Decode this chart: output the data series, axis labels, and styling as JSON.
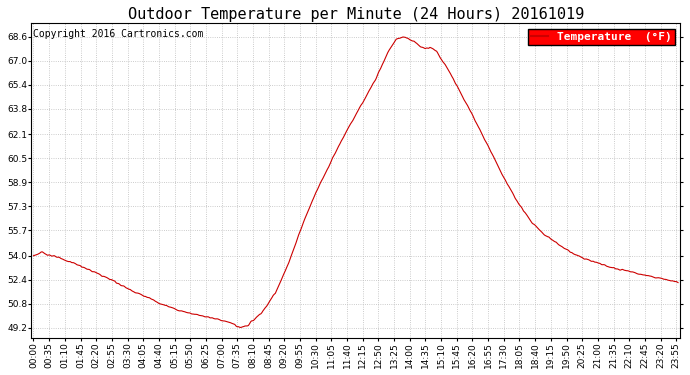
{
  "title": "Outdoor Temperature per Minute (24 Hours) 20161019",
  "copyright": "Copyright 2016 Cartronics.com",
  "legend_label": "Temperature  (°F)",
  "yticks": [
    49.2,
    50.8,
    52.4,
    54.0,
    55.7,
    57.3,
    58.9,
    60.5,
    62.1,
    63.8,
    65.4,
    67.0,
    68.6
  ],
  "ylim": [
    48.5,
    69.5
  ],
  "line_color": "#cc0000",
  "background_color": "#ffffff",
  "grid_color": "#bbbbbb",
  "title_fontsize": 11,
  "copyright_fontsize": 7,
  "tick_labelsize": 6.5,
  "legend_fontsize": 8,
  "control_points_x": [
    0,
    20,
    40,
    60,
    90,
    120,
    150,
    180,
    210,
    240,
    270,
    300,
    330,
    360,
    390,
    420,
    450,
    455,
    460,
    470,
    480,
    510,
    540,
    570,
    600,
    630,
    660,
    690,
    720,
    750,
    775,
    790,
    800,
    810,
    820,
    825,
    830,
    840,
    855,
    865,
    875,
    885,
    900,
    930,
    960,
    990,
    1020,
    1050,
    1080,
    1110,
    1140,
    1170,
    1200,
    1230,
    1260,
    1290,
    1320,
    1350,
    1380,
    1410,
    1439
  ],
  "control_points_y": [
    54.0,
    54.2,
    54.0,
    53.8,
    53.5,
    53.1,
    52.7,
    52.3,
    51.8,
    51.4,
    51.0,
    50.6,
    50.3,
    50.1,
    49.9,
    49.7,
    49.4,
    49.25,
    49.2,
    49.22,
    49.4,
    50.2,
    51.5,
    53.5,
    56.0,
    58.2,
    60.0,
    61.8,
    63.4,
    65.0,
    66.5,
    67.5,
    68.0,
    68.4,
    68.55,
    68.6,
    68.55,
    68.4,
    68.2,
    67.9,
    67.8,
    67.9,
    67.6,
    66.2,
    64.5,
    62.8,
    61.0,
    59.2,
    57.6,
    56.3,
    55.4,
    54.8,
    54.2,
    53.8,
    53.5,
    53.2,
    53.0,
    52.8,
    52.6,
    52.4,
    52.2
  ]
}
